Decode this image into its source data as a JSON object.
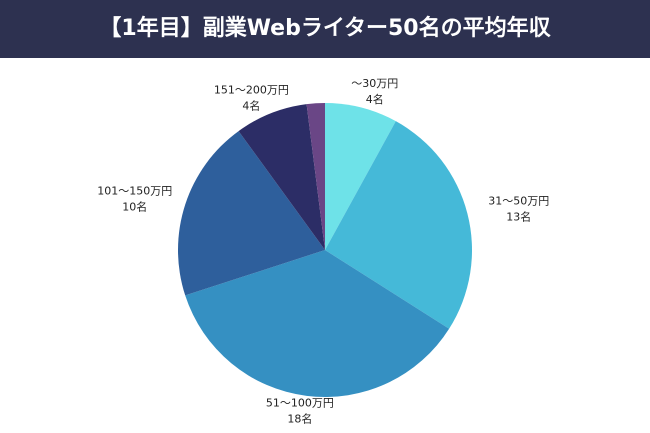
{
  "chart_data": {
    "type": "pie",
    "title": "【1年目】副業Webライター50名の平均年収",
    "categories": [
      "〜30万円",
      "31〜50万円",
      "51〜100万円",
      "101〜150万円",
      "151〜200万円",
      null
    ],
    "values": [
      4,
      13,
      18,
      10,
      4,
      1
    ],
    "value_labels": [
      "4名",
      "13名",
      "18名",
      "10名",
      "4名",
      null
    ],
    "colors": [
      "#6ee2e8",
      "#45b9d8",
      "#3590c2",
      "#2e5f9c",
      "#2c2d66",
      "#6a4686"
    ]
  }
}
